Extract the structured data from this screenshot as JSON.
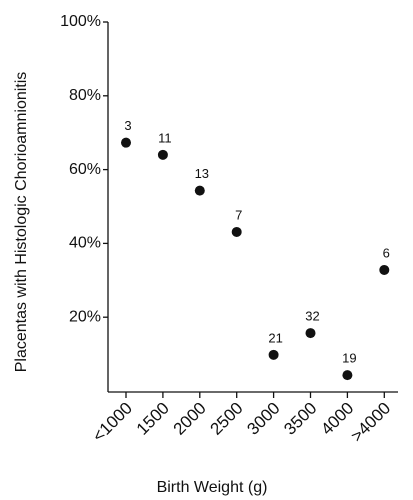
{
  "chart_data": {
    "type": "scatter",
    "y_label": "Placentas with Histologic Chorioamnionitis",
    "x_label": "Birth Weight (g)",
    "categories": [
      "<1000",
      "1500",
      "2000",
      "2500",
      "3000",
      "3500",
      "4000",
      ">4000"
    ],
    "values": [
      67.3,
      64,
      54.3,
      43.1,
      9.8,
      15.7,
      4.3,
      32.8
    ],
    "annotations": [
      "3",
      "11",
      "13",
      "7",
      "21",
      "32",
      "19",
      "6"
    ],
    "color": "#111111",
    "ylim": [
      0,
      100
    ],
    "yticks": [
      {
        "value": 20,
        "label": "20%"
      },
      {
        "value": 40,
        "label": "40%"
      },
      {
        "value": 60,
        "label": "60%"
      },
      {
        "value": 80,
        "label": "80%"
      },
      {
        "value": 100,
        "label": "100%"
      }
    ]
  }
}
